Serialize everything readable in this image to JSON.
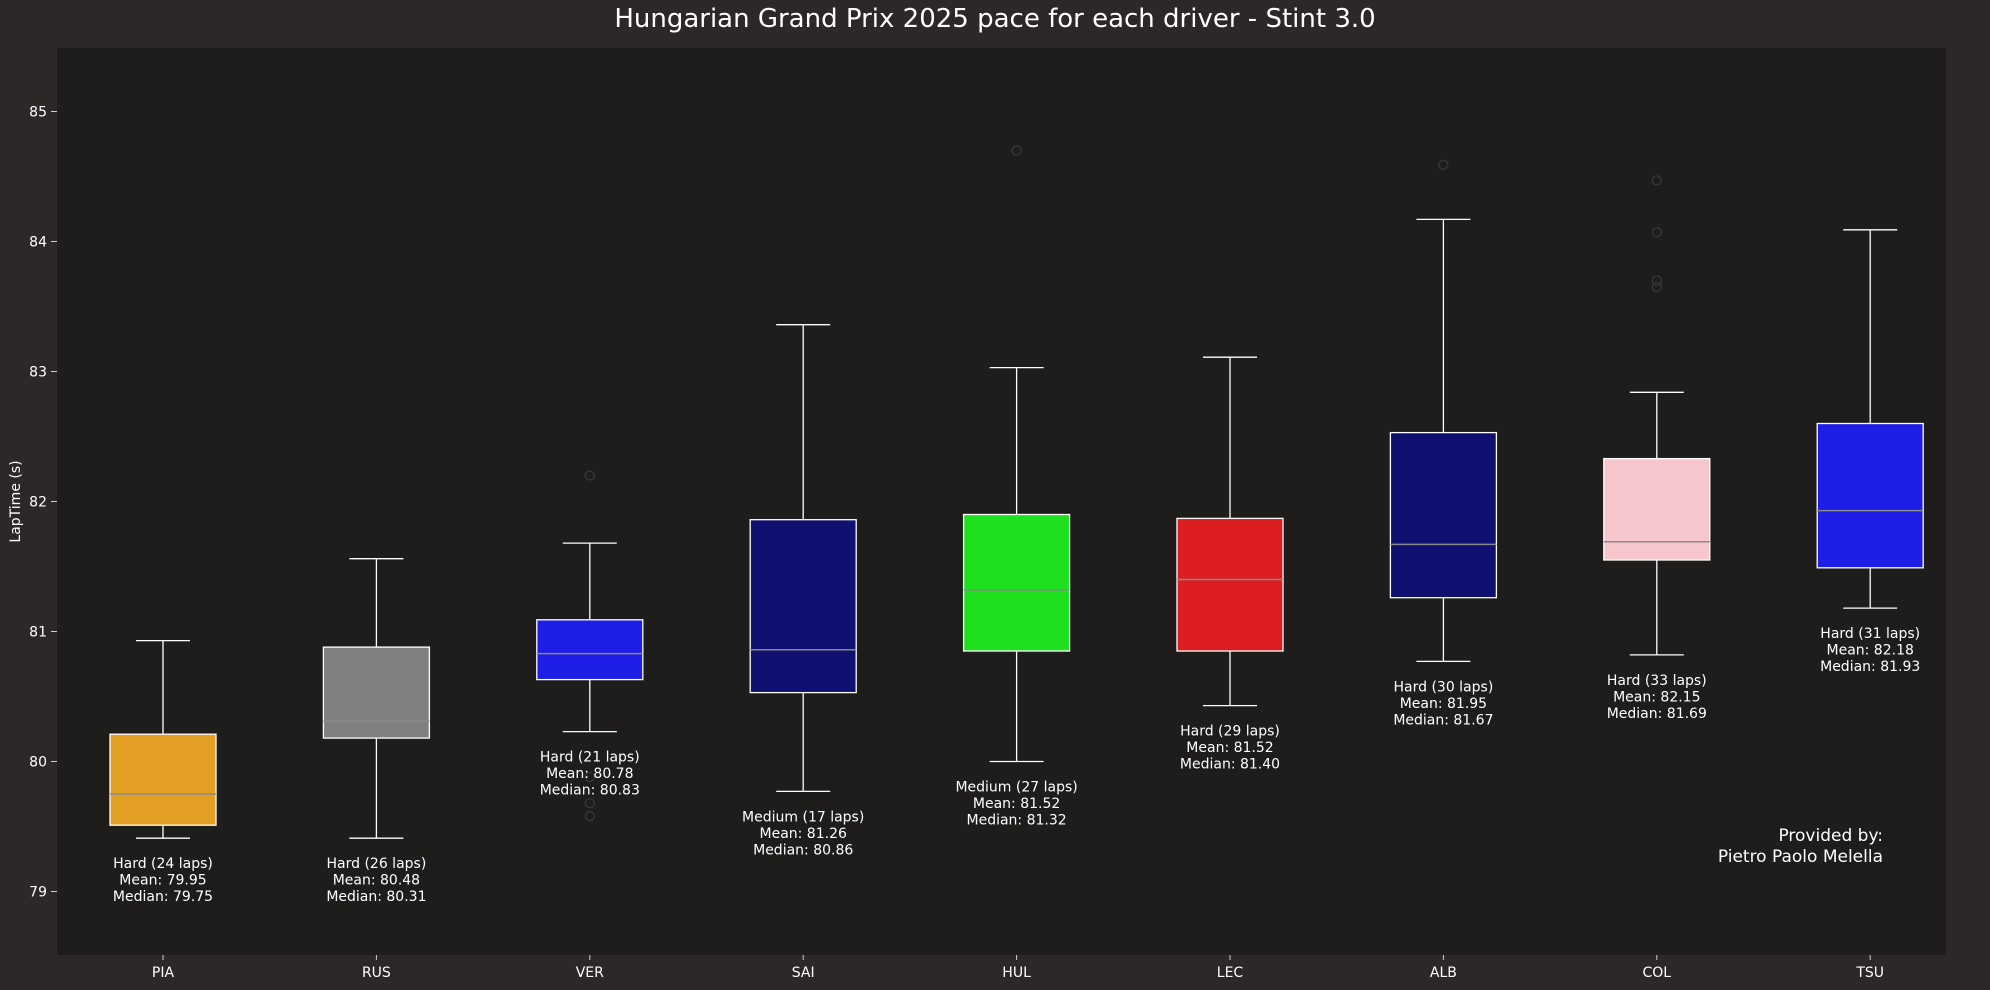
{
  "chart_data": {
    "type": "box",
    "title": "Hungarian Grand Prix 2025 pace for each driver - Stint 3.0",
    "xlabel": "",
    "ylabel": "LapTime (s)",
    "ylim": [
      78.5,
      85.5
    ],
    "yticks": [
      79,
      80,
      81,
      82,
      83,
      84,
      85
    ],
    "grid": false,
    "colors": {
      "figure_bg": "#2b2827",
      "plot_bg": "#1e1d1c",
      "text": "#ffffff",
      "whisker": "#ffffff",
      "median_line": "#8a8a8a",
      "flier": "#3a3a3a"
    },
    "drivers": [
      {
        "driver": "PIA",
        "color": "#e3a024",
        "compound": "Hard",
        "laps": 24,
        "whisker_low": 79.41,
        "q1": 79.51,
        "median": 79.75,
        "q3": 80.21,
        "whisker_high": 80.93,
        "mean": 79.95,
        "outliers": [],
        "label_lines": [
          "Hard (24 laps)",
          "Mean: 79.95",
          "Median: 79.75"
        ]
      },
      {
        "driver": "RUS",
        "color": "#808080",
        "compound": "Hard",
        "laps": 26,
        "whisker_low": 79.41,
        "q1": 80.18,
        "median": 80.31,
        "q3": 80.88,
        "whisker_high": 81.56,
        "mean": 80.48,
        "outliers": [],
        "label_lines": [
          "Hard (26 laps)",
          "Mean: 80.48",
          "Median: 80.31"
        ]
      },
      {
        "driver": "VER",
        "color": "#1e1ee6",
        "compound": "Hard",
        "laps": 21,
        "whisker_low": 80.23,
        "q1": 80.63,
        "median": 80.83,
        "q3": 81.09,
        "whisker_high": 81.68,
        "mean": 80.78,
        "outliers": [
          79.88,
          79.68,
          79.58,
          82.2
        ],
        "label_lines": [
          "Hard (21 laps)",
          "Mean: 80.78",
          "Median: 80.83"
        ]
      },
      {
        "driver": "SAI",
        "color": "#101070",
        "compound": "Medium",
        "laps": 17,
        "whisker_low": 79.77,
        "q1": 80.53,
        "median": 80.86,
        "q3": 81.86,
        "whisker_high": 83.36,
        "mean": 81.26,
        "outliers": [],
        "label_lines": [
          "Medium (17 laps)",
          "Mean: 81.26",
          "Median: 80.86"
        ]
      },
      {
        "driver": "HUL",
        "color": "#1ee01e",
        "compound": "Medium",
        "laps": 27,
        "whisker_low": 80.0,
        "q1": 80.85,
        "median": 81.32,
        "q3": 81.9,
        "whisker_high": 83.03,
        "mean": 81.52,
        "outliers": [
          84.7
        ],
        "label_lines": [
          "Medium (27 laps)",
          "Mean: 81.52",
          "Median: 81.32"
        ]
      },
      {
        "driver": "LEC",
        "color": "#dc1e22",
        "compound": "Hard",
        "laps": 29,
        "whisker_low": 80.43,
        "q1": 80.85,
        "median": 81.4,
        "q3": 81.87,
        "whisker_high": 83.11,
        "mean": 81.52,
        "outliers": [],
        "label_lines": [
          "Hard (29 laps)",
          "Mean: 81.52",
          "Median: 81.40"
        ]
      },
      {
        "driver": "ALB",
        "color": "#101070",
        "compound": "Hard",
        "laps": 30,
        "whisker_low": 80.77,
        "q1": 81.26,
        "median": 81.67,
        "q3": 82.53,
        "whisker_high": 84.17,
        "mean": 81.95,
        "outliers": [
          84.59
        ],
        "label_lines": [
          "Hard (30 laps)",
          "Mean: 81.95",
          "Median: 81.67"
        ]
      },
      {
        "driver": "COL",
        "color": "#f7c6cd",
        "compound": "Hard",
        "laps": 33,
        "whisker_low": 80.82,
        "q1": 81.55,
        "median": 81.69,
        "q3": 82.33,
        "whisker_high": 82.84,
        "mean": 82.15,
        "outliers": [
          84.47,
          84.07,
          83.7,
          83.65
        ],
        "label_lines": [
          "Hard (33 laps)",
          "Mean: 82.15",
          "Median: 81.69"
        ]
      },
      {
        "driver": "TSU",
        "color": "#1e1ee6",
        "compound": "Hard",
        "laps": 31,
        "whisker_low": 81.18,
        "q1": 81.49,
        "median": 81.93,
        "q3": 82.6,
        "whisker_high": 84.09,
        "mean": 82.18,
        "outliers": [],
        "label_lines": [
          "Hard (31 laps)",
          "Mean: 82.18",
          "Median: 81.93"
        ]
      }
    ],
    "annotation": {
      "line1": "Provided by:",
      "line2": "Pietro Paolo Melella"
    }
  }
}
